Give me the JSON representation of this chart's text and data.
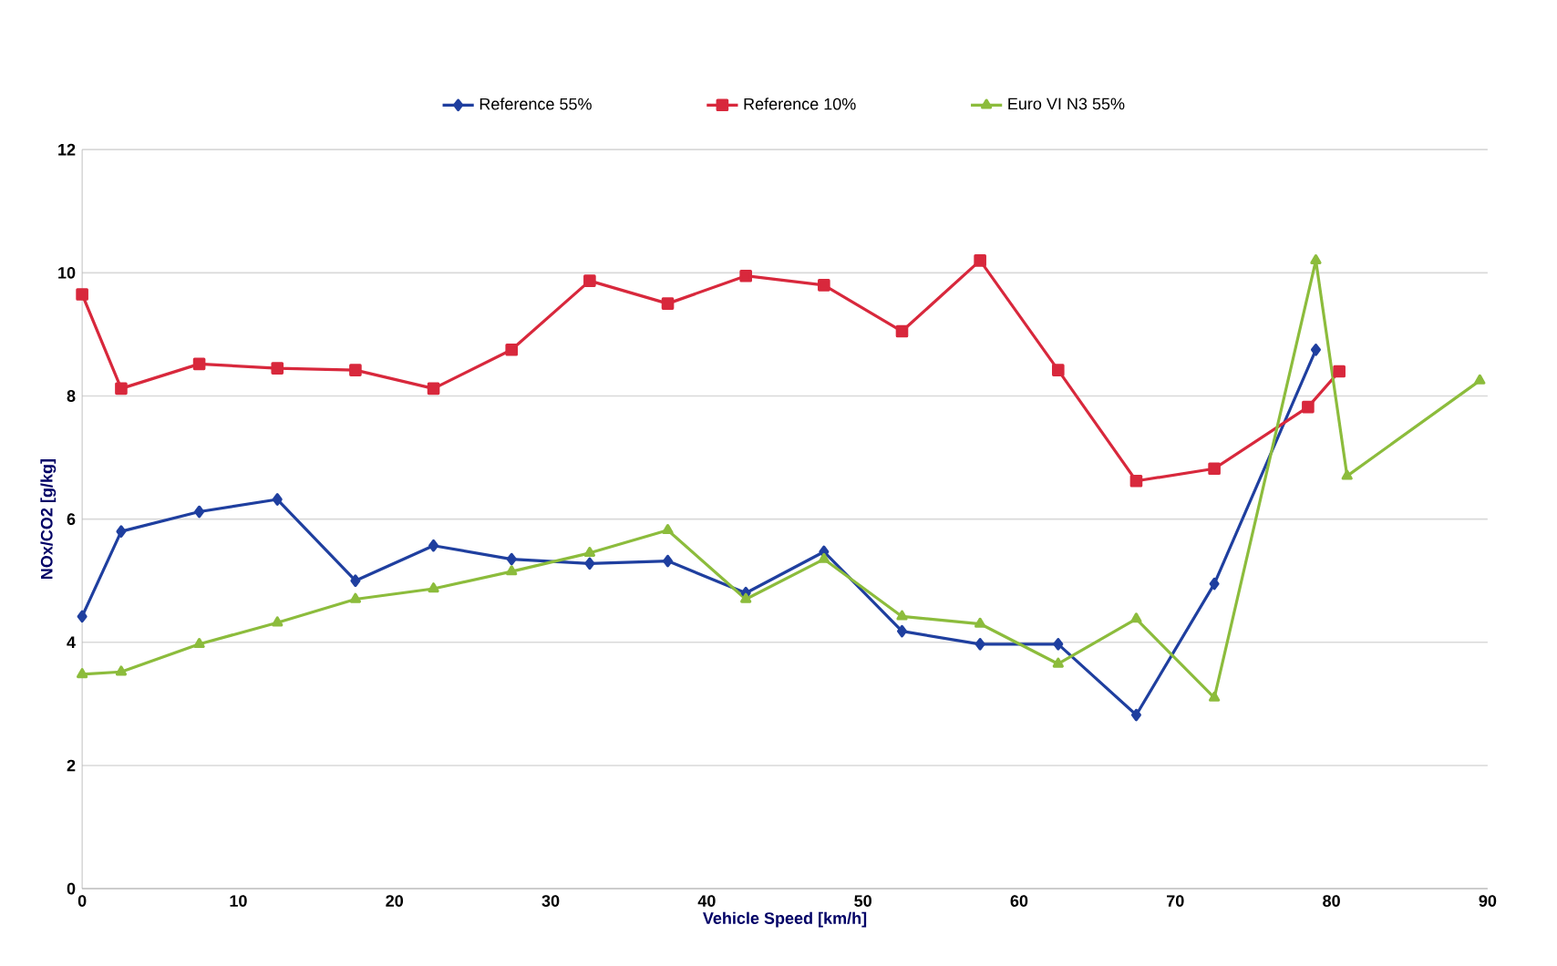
{
  "chart_data": {
    "type": "line",
    "xlabel": "Vehicle Speed [km/h]",
    "ylabel": "NOx/CO2 [g/kg]",
    "xlim": [
      0,
      90
    ],
    "xticks": [
      0,
      10,
      20,
      30,
      40,
      50,
      60,
      70,
      80,
      90
    ],
    "ylim": [
      0,
      12
    ],
    "yticks": [
      0,
      2,
      4,
      6,
      8,
      10,
      12
    ],
    "grid": "y",
    "legend": "top",
    "series": [
      {
        "name": "Reference 55%",
        "color": "#1f3f9f",
        "marker": "diamond",
        "x": [
          0,
          2.5,
          7.5,
          12.5,
          17.5,
          22.5,
          27.5,
          32.5,
          37.5,
          42.5,
          47.5,
          52.5,
          57.5,
          62.5,
          67.5,
          72.5,
          79
        ],
        "values": [
          4.42,
          5.8,
          6.12,
          6.32,
          5.0,
          5.57,
          5.35,
          5.28,
          5.32,
          4.8,
          5.47,
          4.18,
          3.97,
          3.97,
          2.82,
          4.95,
          8.75
        ]
      },
      {
        "name": "Reference 10%",
        "color": "#d8283c",
        "marker": "square",
        "x": [
          0,
          2.5,
          7.5,
          12.5,
          17.5,
          22.5,
          27.5,
          32.5,
          37.5,
          42.5,
          47.5,
          52.5,
          57.5,
          62.5,
          67.5,
          72.5,
          78.5,
          80.5
        ],
        "values": [
          9.65,
          8.12,
          8.52,
          8.45,
          8.42,
          8.12,
          8.75,
          9.87,
          9.5,
          9.95,
          9.8,
          9.05,
          10.2,
          8.42,
          6.62,
          6.82,
          7.82,
          8.4
        ]
      },
      {
        "name": "Euro VI N3 55%",
        "color": "#8cbc3c",
        "marker": "triangle",
        "x": [
          0,
          2.5,
          7.5,
          12.5,
          17.5,
          22.5,
          27.5,
          32.5,
          37.5,
          42.5,
          47.5,
          52.5,
          57.5,
          62.5,
          67.5,
          72.5,
          79,
          81,
          89.5
        ],
        "values": [
          3.48,
          3.52,
          3.97,
          4.32,
          4.7,
          4.87,
          5.15,
          5.45,
          5.82,
          4.7,
          5.35,
          4.42,
          4.3,
          3.65,
          4.38,
          3.1,
          10.2,
          6.7,
          8.25
        ]
      }
    ]
  }
}
